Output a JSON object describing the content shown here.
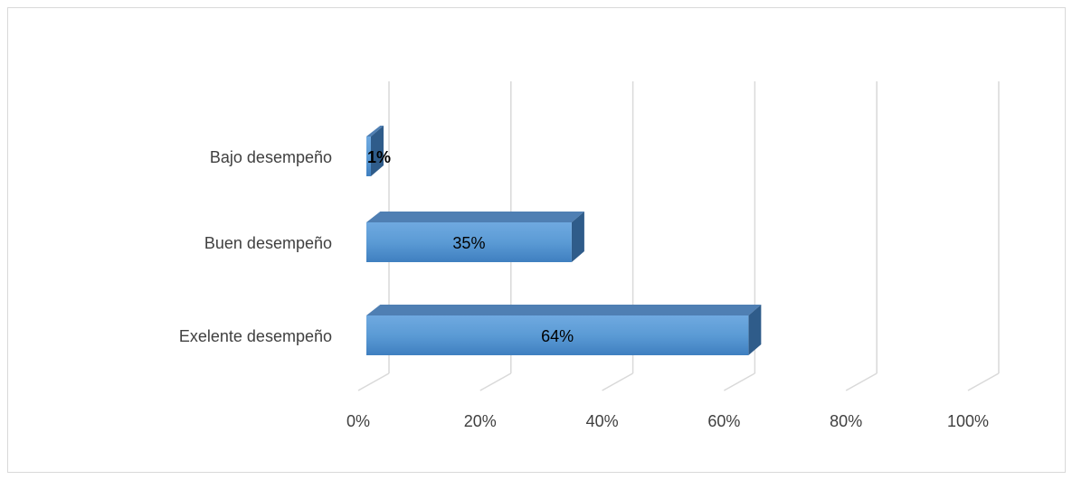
{
  "chart_data": {
    "type": "bar",
    "orientation": "horizontal",
    "style": "3d",
    "categories": [
      "Bajo desempeño",
      "Buen desempeño",
      "Exelente desempeño"
    ],
    "values": [
      1,
      35,
      64
    ],
    "value_labels": [
      "1%",
      "35%",
      "64%"
    ],
    "x_ticks": [
      "0%",
      "20%",
      "40%",
      "60%",
      "80%",
      "100%"
    ],
    "xlim": [
      0,
      100
    ],
    "grid": true,
    "legend": "none",
    "colors": {
      "bar_front": "#5b9bd5",
      "bar_top": "#4f7fb3",
      "bar_side": "#2f5c8a",
      "grid": "#d9d9d9",
      "text": "#404040"
    }
  }
}
